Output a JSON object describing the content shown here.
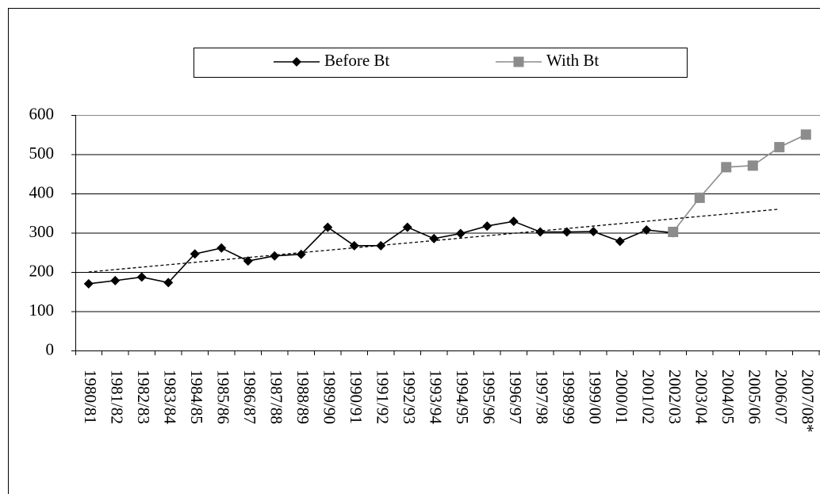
{
  "chart_data": {
    "type": "line",
    "categories": [
      "1980/81",
      "1981/82",
      "1982/83",
      "1983/84",
      "1984/85",
      "1985/86",
      "1986/87",
      "1987/88",
      "1988/89",
      "1989/90",
      "1990/91",
      "1991/92",
      "1992/93",
      "1993/94",
      "1994/95",
      "1995/96",
      "1996/97",
      "1997/98",
      "1998/99",
      "1999/00",
      "2000/01",
      "2001/02",
      "2002/03",
      "2003/04",
      "2004/05",
      "2005/06",
      "2006/07",
      "2007/08*"
    ],
    "series": [
      {
        "name": "Before Bt",
        "color": "#000000",
        "marker": "diamond",
        "values": [
          170,
          178,
          187,
          173,
          246,
          261,
          228,
          241,
          245,
          314,
          267,
          267,
          314,
          285,
          298,
          317,
          329,
          302,
          302,
          303,
          278,
          307,
          300,
          null,
          null,
          null,
          null,
          null
        ]
      },
      {
        "name": "With Bt",
        "color": "#8c8c8c",
        "marker": "square",
        "values": [
          null,
          null,
          null,
          null,
          null,
          null,
          null,
          null,
          null,
          null,
          null,
          null,
          null,
          null,
          null,
          null,
          null,
          null,
          null,
          null,
          null,
          null,
          302,
          389,
          467,
          471,
          518,
          550
        ]
      }
    ],
    "trend": {
      "x": [
        "1980/81",
        "2006/07"
      ],
      "values": [
        200,
        360
      ],
      "color": "#000000",
      "dashed": true
    },
    "ylim": [
      0,
      600
    ],
    "yticks": [
      0,
      100,
      200,
      300,
      400,
      500,
      600
    ],
    "grid": true
  }
}
